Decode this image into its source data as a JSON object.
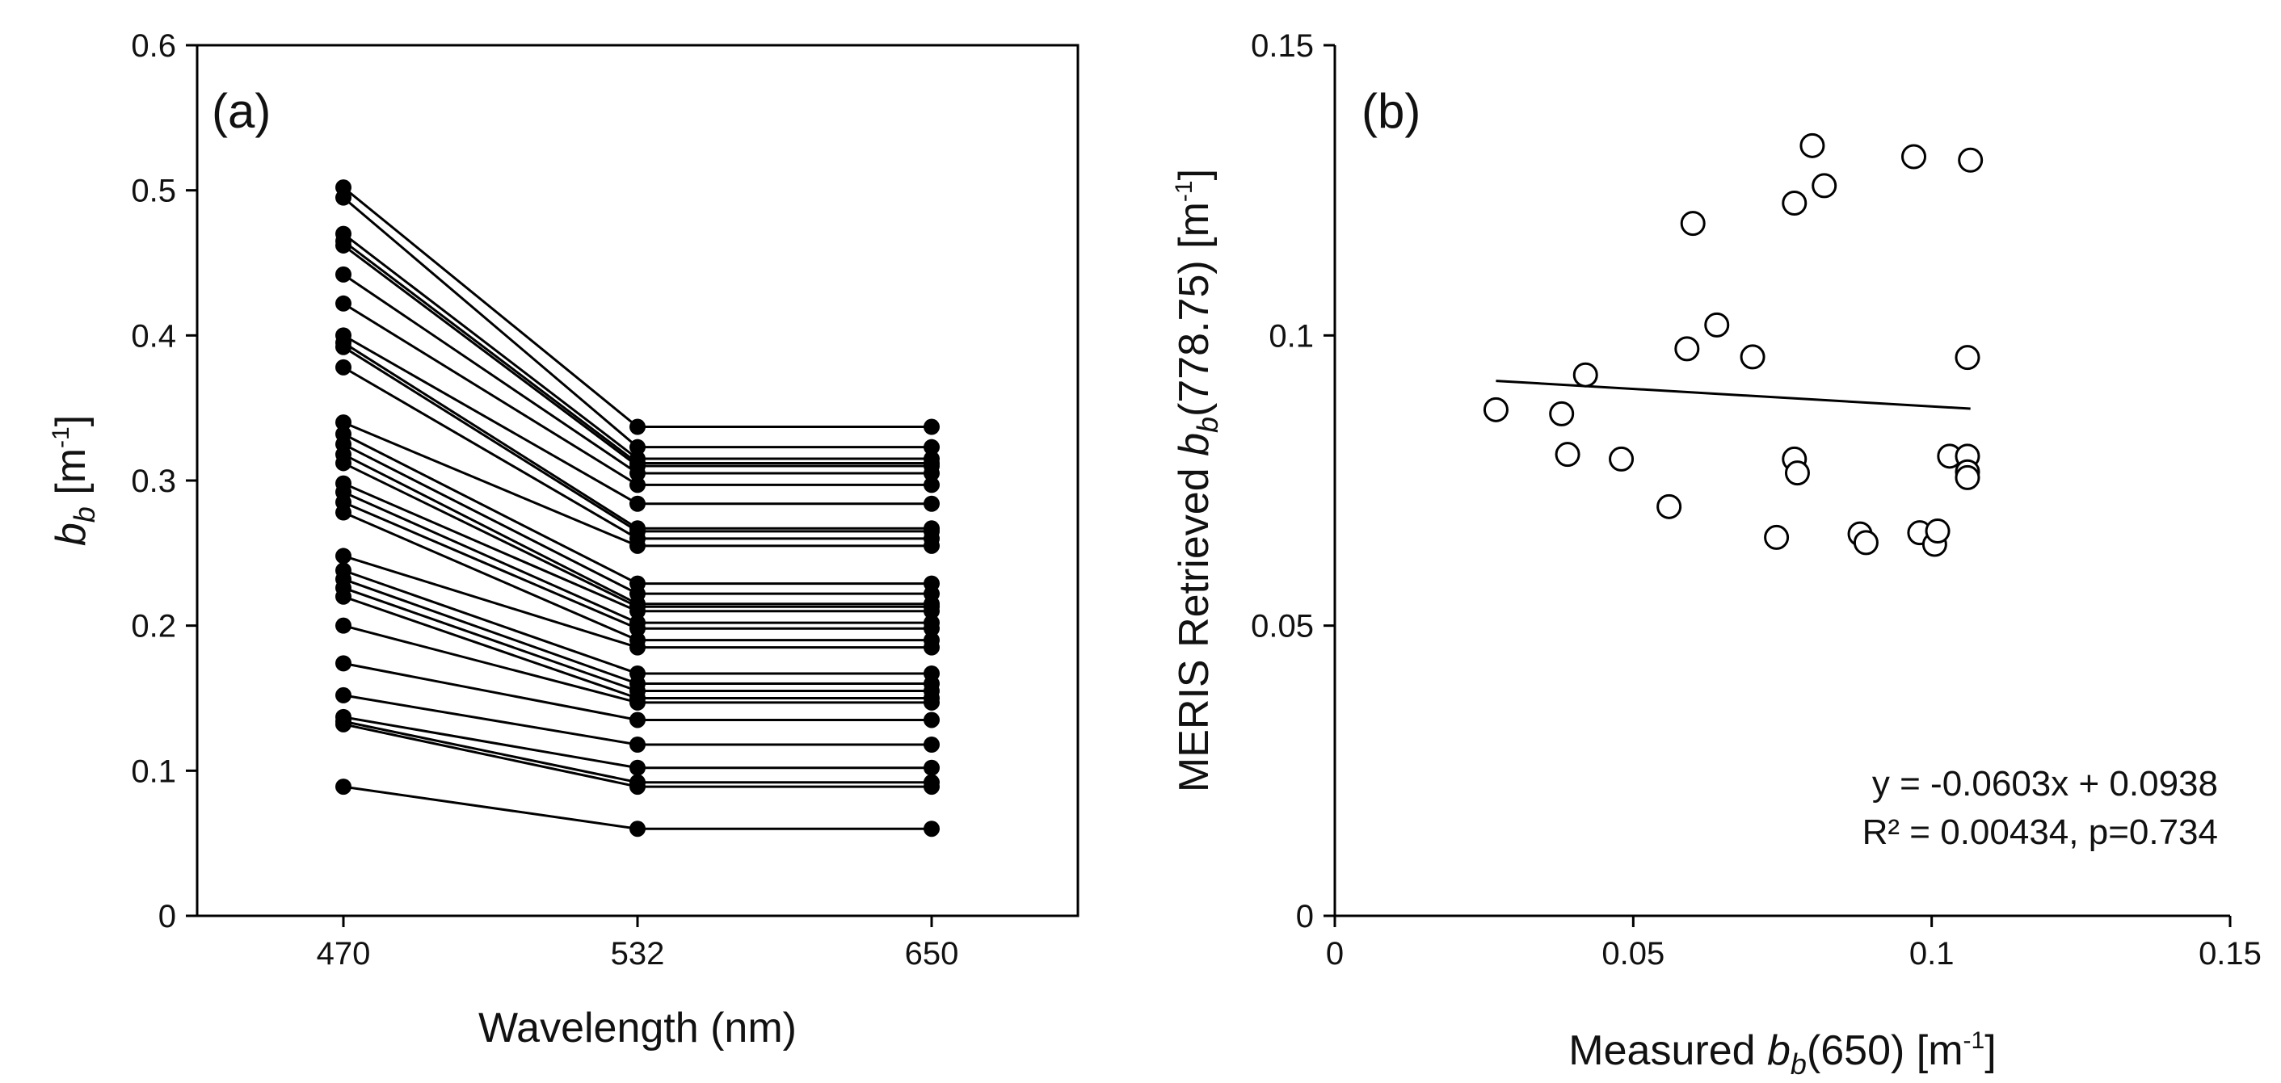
{
  "chart_data": [
    {
      "panel": "(a)",
      "type": "line",
      "xlabel": "Wavelength (nm)",
      "ylabel_main": "b",
      "ylabel_sub": "b",
      "ylabel_unit_prefix": " [m",
      "ylabel_unit_sup": "-1",
      "ylabel_unit_suffix": "]",
      "categories": [
        "470",
        "532",
        "650"
      ],
      "ylim": [
        0,
        0.6
      ],
      "yticks": [
        "0",
        "0.1",
        "0.2",
        "0.3",
        "0.4",
        "0.5",
        "0.6"
      ],
      "series": [
        {
          "values": [
            0.502,
            0.337,
            0.337
          ]
        },
        {
          "values": [
            0.495,
            0.323,
            0.323
          ]
        },
        {
          "values": [
            0.47,
            0.315,
            0.315
          ]
        },
        {
          "values": [
            0.465,
            0.312,
            0.312
          ]
        },
        {
          "values": [
            0.462,
            0.31,
            0.31
          ]
        },
        {
          "values": [
            0.442,
            0.305,
            0.305
          ]
        },
        {
          "values": [
            0.422,
            0.297,
            0.297
          ]
        },
        {
          "values": [
            0.4,
            0.284,
            0.284
          ]
        },
        {
          "values": [
            0.395,
            0.267,
            0.267
          ]
        },
        {
          "values": [
            0.392,
            0.265,
            0.265
          ]
        },
        {
          "values": [
            0.378,
            0.26,
            0.26
          ]
        },
        {
          "values": [
            0.34,
            0.255,
            0.255
          ]
        },
        {
          "values": [
            0.332,
            0.229,
            0.229
          ]
        },
        {
          "values": [
            0.325,
            0.222,
            0.222
          ]
        },
        {
          "values": [
            0.318,
            0.215,
            0.215
          ]
        },
        {
          "values": [
            0.312,
            0.213,
            0.213
          ]
        },
        {
          "values": [
            0.298,
            0.21,
            0.21
          ]
        },
        {
          "values": [
            0.292,
            0.202,
            0.202
          ]
        },
        {
          "values": [
            0.285,
            0.198,
            0.198
          ]
        },
        {
          "values": [
            0.278,
            0.19,
            0.19
          ]
        },
        {
          "values": [
            0.248,
            0.185,
            0.185
          ]
        },
        {
          "values": [
            0.238,
            0.167,
            0.167
          ]
        },
        {
          "values": [
            0.232,
            0.16,
            0.16
          ]
        },
        {
          "values": [
            0.226,
            0.155,
            0.155
          ]
        },
        {
          "values": [
            0.22,
            0.15,
            0.15
          ]
        },
        {
          "values": [
            0.2,
            0.147,
            0.147
          ]
        },
        {
          "values": [
            0.174,
            0.135,
            0.135
          ]
        },
        {
          "values": [
            0.152,
            0.118,
            0.118
          ]
        },
        {
          "values": [
            0.137,
            0.102,
            0.102
          ]
        },
        {
          "values": [
            0.134,
            0.092,
            0.092
          ]
        },
        {
          "values": [
            0.132,
            0.089,
            0.089
          ]
        },
        {
          "values": [
            0.089,
            0.06,
            0.06
          ]
        }
      ]
    },
    {
      "panel": "(b)",
      "type": "scatter",
      "xlabel_prefix": "Measured ",
      "xlabel_b": "b",
      "xlabel_sub": "b",
      "xlabel_mid": "(650) [m",
      "xlabel_sup": "-1",
      "xlabel_suffix": "]",
      "ylabel_prefix": "MERIS Retrieved ",
      "ylabel_b": "b",
      "ylabel_sub": "b",
      "ylabel_mid": "(778.75) [m",
      "ylabel_sup": "-1",
      "ylabel_suffix": "]",
      "xlim": [
        0,
        0.15
      ],
      "ylim": [
        0,
        0.15
      ],
      "xticks": [
        "0",
        "0.05",
        "0.1",
        "0.15"
      ],
      "yticks": [
        "0",
        "0.05",
        "0.1",
        "0.15"
      ],
      "points": [
        {
          "x": 0.027,
          "y": 0.0872
        },
        {
          "x": 0.038,
          "y": 0.0865
        },
        {
          "x": 0.039,
          "y": 0.0795
        },
        {
          "x": 0.042,
          "y": 0.0932
        },
        {
          "x": 0.048,
          "y": 0.0787
        },
        {
          "x": 0.056,
          "y": 0.0705
        },
        {
          "x": 0.059,
          "y": 0.0977
        },
        {
          "x": 0.06,
          "y": 0.1193
        },
        {
          "x": 0.064,
          "y": 0.1018
        },
        {
          "x": 0.07,
          "y": 0.0963
        },
        {
          "x": 0.074,
          "y": 0.0652
        },
        {
          "x": 0.077,
          "y": 0.1228
        },
        {
          "x": 0.077,
          "y": 0.0787
        },
        {
          "x": 0.0775,
          "y": 0.0763
        },
        {
          "x": 0.08,
          "y": 0.1327
        },
        {
          "x": 0.082,
          "y": 0.1258
        },
        {
          "x": 0.088,
          "y": 0.0658
        },
        {
          "x": 0.089,
          "y": 0.0643
        },
        {
          "x": 0.097,
          "y": 0.1308
        },
        {
          "x": 0.098,
          "y": 0.066
        },
        {
          "x": 0.1005,
          "y": 0.064
        },
        {
          "x": 0.101,
          "y": 0.0663
        },
        {
          "x": 0.103,
          "y": 0.0792
        },
        {
          "x": 0.106,
          "y": 0.0792
        },
        {
          "x": 0.106,
          "y": 0.0765
        },
        {
          "x": 0.106,
          "y": 0.0755
        },
        {
          "x": 0.106,
          "y": 0.0962
        },
        {
          "x": 0.1065,
          "y": 0.1302
        }
      ],
      "trendline": {
        "slope": -0.0603,
        "intercept": 0.0938,
        "x_range": [
          0.027,
          0.1065
        ]
      },
      "equation": "y = -0.0603x + 0.0938",
      "r2_text": "R² = 0.00434, p=0.734"
    }
  ]
}
